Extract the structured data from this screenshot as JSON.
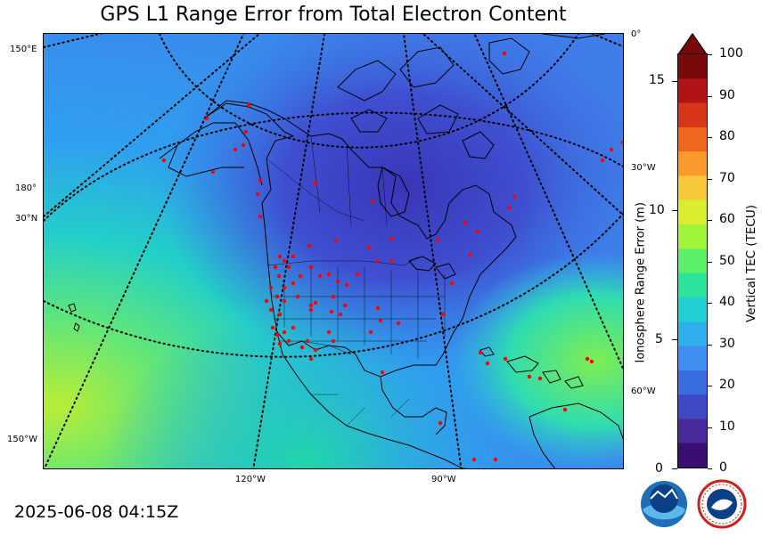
{
  "title": "GPS L1 Range Error from Total Electron Content",
  "timestamp": "2025-06-08 04:15Z",
  "grid_labels": {
    "left": [
      "150°E",
      "180°",
      "30°N",
      "150°W"
    ],
    "right": [
      "0°",
      "30°W",
      "60°W"
    ],
    "bottom": [
      "120°W",
      "90°W"
    ]
  },
  "left_axis": {
    "title": "Ionosphere Range Error (m)",
    "ticks": [
      "15",
      "10",
      "5",
      "0"
    ]
  },
  "colorbar": {
    "title": "Vertical TEC (TECU)",
    "ticks": [
      "100",
      "90",
      "80",
      "70",
      "60",
      "50",
      "40",
      "30",
      "20",
      "10",
      "0"
    ],
    "colors": [
      "#3b0f70",
      "#4a2a9a",
      "#3f49c6",
      "#3a6ee0",
      "#3f8ef0",
      "#2fb0ec",
      "#22cfd4",
      "#2be39b",
      "#5cf06a",
      "#a0f43a",
      "#d8ee2e",
      "#f6c83a",
      "#fb9a2c",
      "#f0661c",
      "#d8361a",
      "#b01414",
      "#7a0a0a"
    ]
  },
  "logos": [
    "noaa-logo",
    "nws-logo"
  ],
  "colors": {
    "station": "#ff0000",
    "background_high": "#9fe83a",
    "background_low": "#3b45c8"
  }
}
